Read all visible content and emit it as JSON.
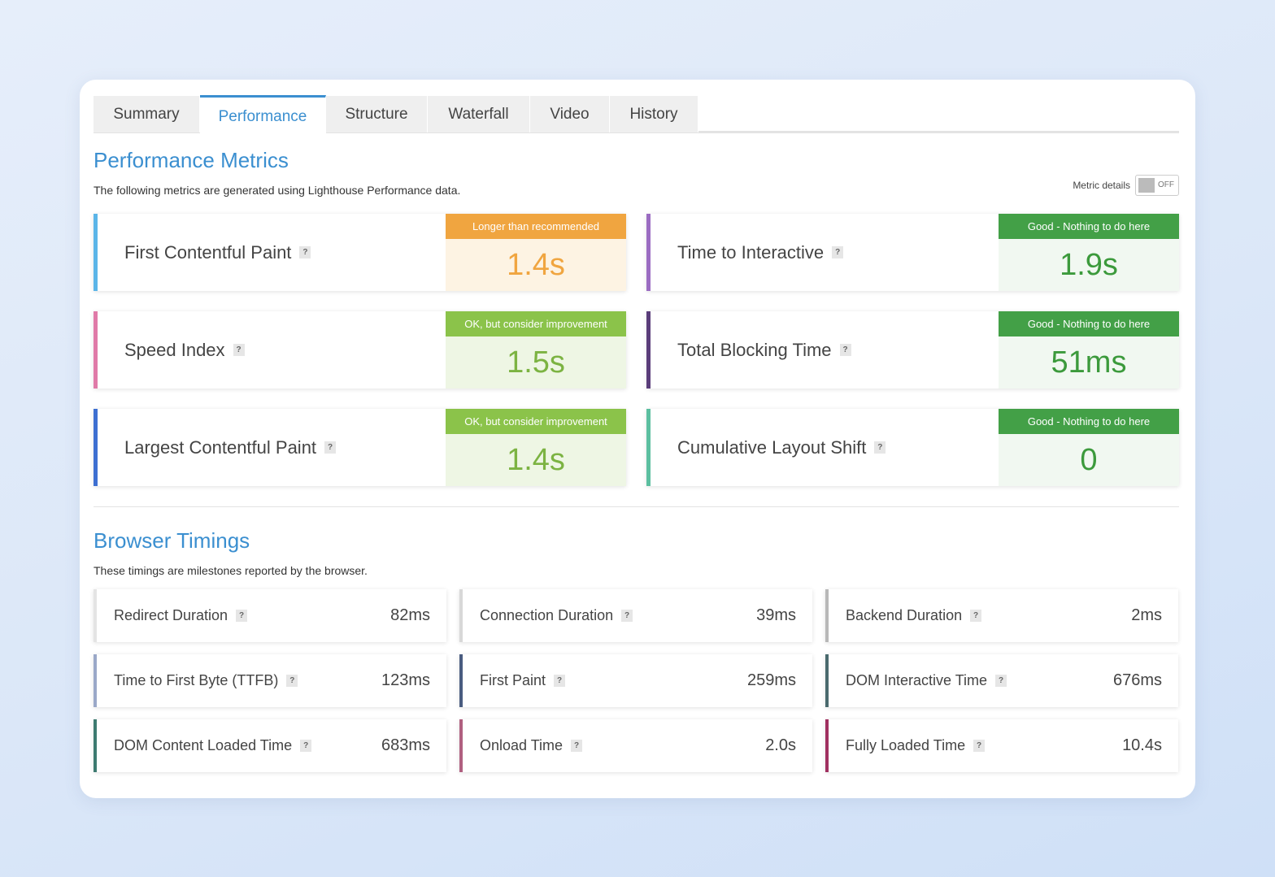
{
  "tabs": [
    {
      "label": "Summary",
      "active": false
    },
    {
      "label": "Performance",
      "active": true
    },
    {
      "label": "Structure",
      "active": false
    },
    {
      "label": "Waterfall",
      "active": false
    },
    {
      "label": "Video",
      "active": false
    },
    {
      "label": "History",
      "active": false
    }
  ],
  "help_icon": "?",
  "metrics": {
    "title": "Performance Metrics",
    "description": "The following metrics are generated using Lighthouse Performance data.",
    "toggle_label": "Metric details",
    "toggle_state": "OFF",
    "items": [
      {
        "label": "First Contentful Paint",
        "status": "Longer than recommended",
        "value": "1.4s",
        "tone": "orange",
        "accent": "#5bb5e8"
      },
      {
        "label": "Time to Interactive",
        "status": "Good - Nothing to do here",
        "value": "1.9s",
        "tone": "green",
        "accent": "#9b6cc2"
      },
      {
        "label": "Speed Index",
        "status": "OK, but consider improvement",
        "value": "1.5s",
        "tone": "lightgreen",
        "accent": "#e07aa8"
      },
      {
        "label": "Total Blocking Time",
        "status": "Good - Nothing to do here",
        "value": "51ms",
        "tone": "green",
        "accent": "#5a3d7a"
      },
      {
        "label": "Largest Contentful Paint",
        "status": "OK, but consider improvement",
        "value": "1.4s",
        "tone": "lightgreen",
        "accent": "#3d6fd1"
      },
      {
        "label": "Cumulative Layout Shift",
        "status": "Good - Nothing to do here",
        "value": "0",
        "tone": "green",
        "accent": "#5cbfa0"
      }
    ]
  },
  "timings": {
    "title": "Browser Timings",
    "description": "These timings are milestones reported by the browser.",
    "items": [
      {
        "label": "Redirect Duration",
        "value": "82ms",
        "accent": "#e4e4e4"
      },
      {
        "label": "Connection Duration",
        "value": "39ms",
        "accent": "#d8d8d8"
      },
      {
        "label": "Backend Duration",
        "value": "2ms",
        "accent": "#b8b8b8"
      },
      {
        "label": "Time to First Byte (TTFB)",
        "value": "123ms",
        "accent": "#9aa8c8"
      },
      {
        "label": "First Paint",
        "value": "259ms",
        "accent": "#4a5c80"
      },
      {
        "label": "DOM Interactive Time",
        "value": "676ms",
        "accent": "#4a6a6e"
      },
      {
        "label": "DOM Content Loaded Time",
        "value": "683ms",
        "accent": "#3d7a70"
      },
      {
        "label": "Onload Time",
        "value": "2.0s",
        "accent": "#b06080"
      },
      {
        "label": "Fully Loaded Time",
        "value": "10.4s",
        "accent": "#a03060"
      }
    ]
  }
}
